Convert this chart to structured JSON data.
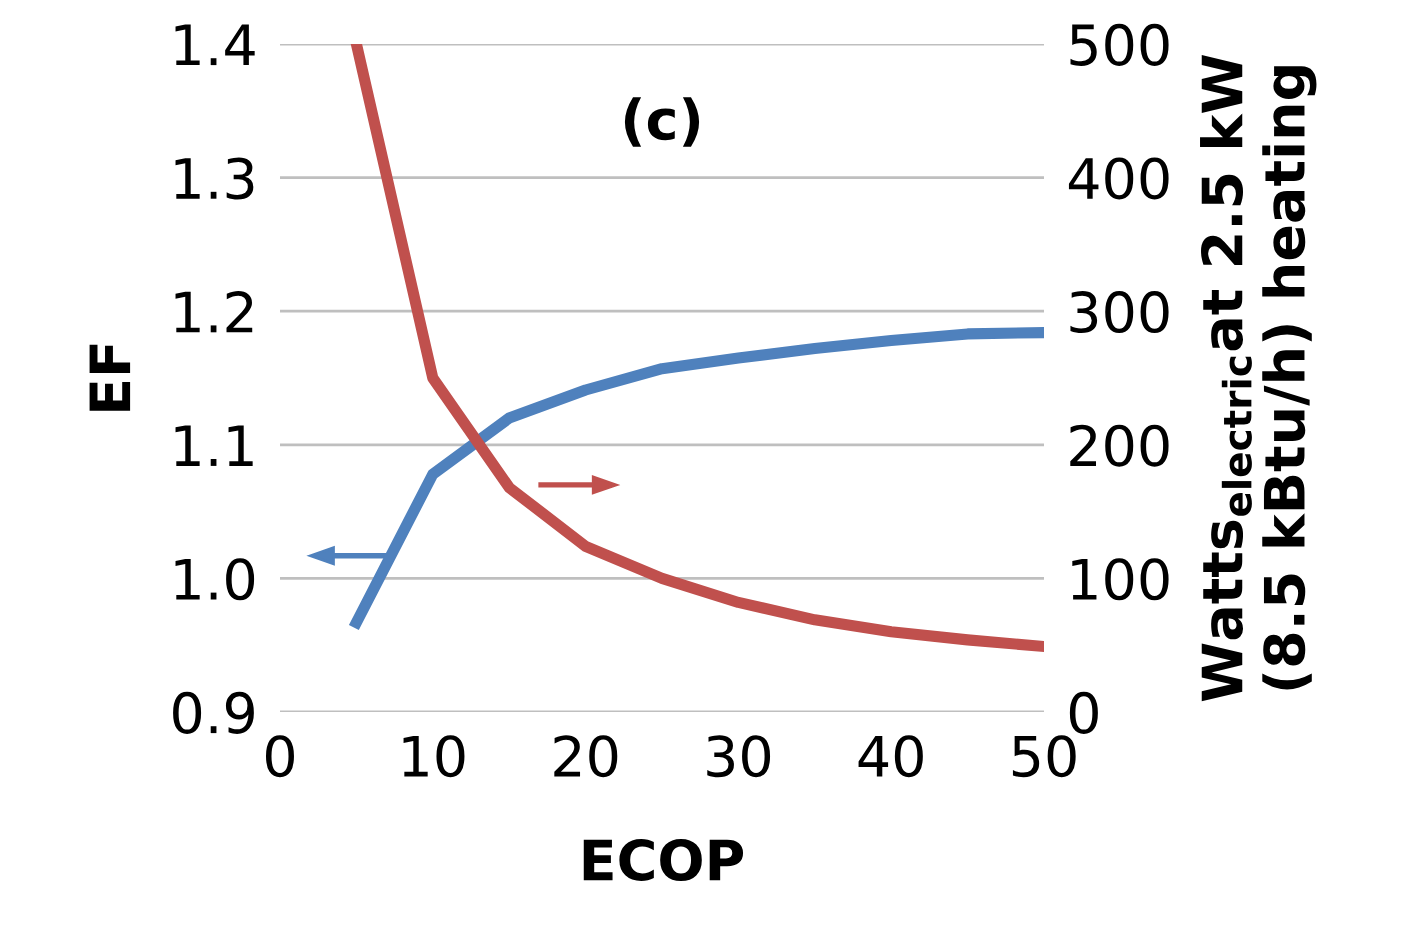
{
  "chart_data": {
    "type": "line",
    "xlabel": "ECOP",
    "ylabel": "EF",
    "y2label": "Watts$_{electric}$at 2.5 kW\n(8.5 kBtu/h) heating",
    "annotations": [
      "(c)"
    ],
    "x": [
      5,
      10,
      15,
      20,
      25,
      30,
      35,
      40,
      45,
      50
    ],
    "series": [
      {
        "color": "#4f81bd",
        "values": [
          0.967,
          1.078,
          1.12,
          1.141,
          1.157,
          1.165,
          1.172,
          1.178,
          1.183,
          1.184
        ]
      },
      {
        "color": "#c0504d",
        "axis": "y2",
        "values": [
          500,
          250,
          168,
          124,
          100,
          82,
          69,
          60,
          54,
          49
        ]
      }
    ],
    "xlim": [
      0,
      50
    ],
    "xticks": [
      0,
      10,
      20,
      30,
      40,
      50
    ],
    "ylim": [
      0.9,
      1.4
    ],
    "yticks": [
      {
        "value": 0.9,
        "label": "0.9"
      },
      {
        "value": 1.0,
        "label": "1.0"
      },
      {
        "value": 1.1,
        "label": "1.1"
      },
      {
        "value": 1.2,
        "label": "1.2"
      },
      {
        "value": 1.3,
        "label": "1.3"
      },
      {
        "value": 1.4,
        "label": "1.4"
      }
    ],
    "y2lim": [
      0,
      500
    ],
    "y2ticks": [
      0,
      100,
      200,
      300,
      400,
      500
    ],
    "grid": "y",
    "marker": "none",
    "line_style": "solid"
  }
}
